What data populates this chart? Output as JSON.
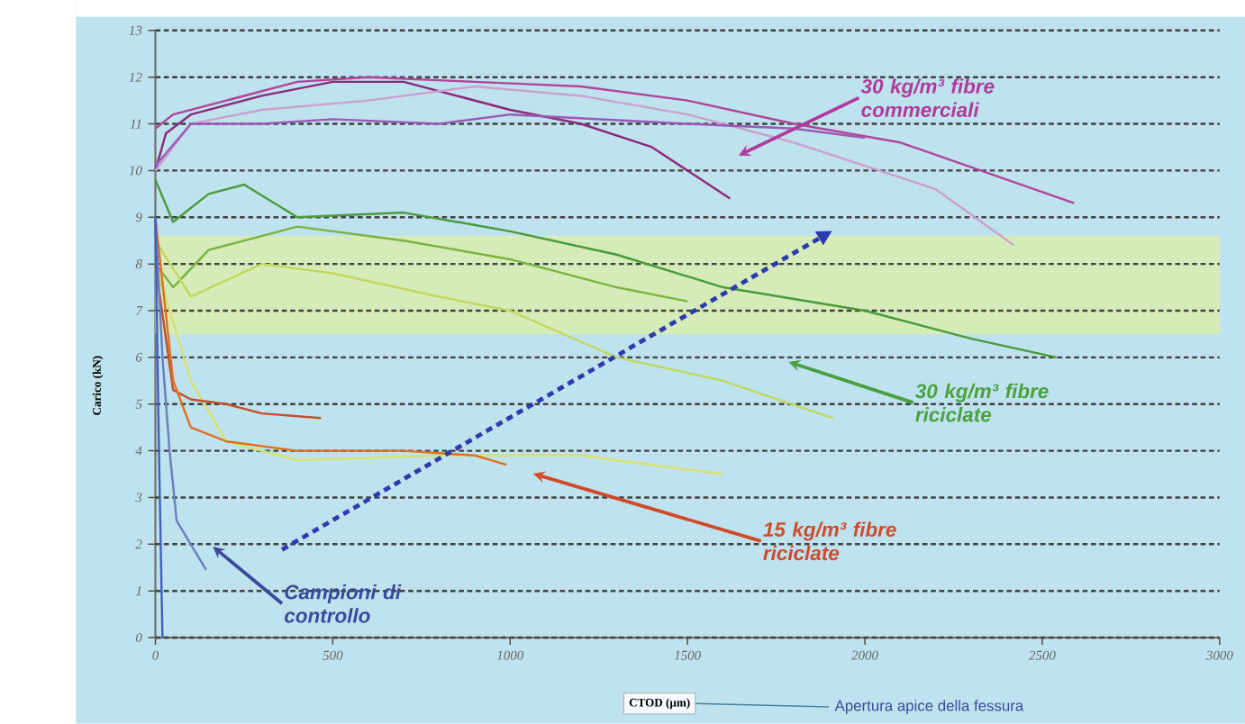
{
  "chart_data": {
    "type": "line",
    "ylabel": "Carico (kN)",
    "xlabel": "CTOD (µm)",
    "xlim": [
      0,
      3000
    ],
    "xticks": [
      0,
      500,
      1000,
      1500,
      2000,
      2500,
      3000
    ],
    "ylim": [
      0,
      13
    ],
    "yticks": [
      0,
      1,
      2,
      3,
      4,
      5,
      6,
      7,
      8,
      9,
      10,
      11,
      12,
      13
    ],
    "grid": "y",
    "line_style": "solid",
    "marker": "none",
    "bands": [
      {
        "axis": "y",
        "from": 6.5,
        "to": 8.6,
        "color": "#d6ecb8"
      }
    ],
    "series": [
      {
        "color": "#8b2a7a",
        "x": [
          0,
          30,
          100,
          300,
          500,
          700,
          1000,
          1200,
          1400,
          1620
        ],
        "values": [
          10,
          10.8,
          11.2,
          11.6,
          11.9,
          11.9,
          11.3,
          11.0,
          10.5,
          9.4
        ]
      },
      {
        "color": "#b0459a",
        "x": [
          0,
          50,
          200,
          400,
          600,
          900,
          1200,
          1500,
          1800,
          2100,
          2590
        ],
        "values": [
          10.9,
          11.2,
          11.5,
          11.9,
          12.0,
          11.9,
          11.8,
          11.5,
          11.0,
          10.6,
          9.3
        ]
      },
      {
        "color": "#c9a0d0",
        "x": [
          0,
          100,
          300,
          600,
          900,
          1200,
          1500,
          1800,
          2200,
          2420
        ],
        "values": [
          10,
          11.0,
          11.3,
          11.5,
          11.8,
          11.6,
          11.2,
          10.6,
          9.6,
          8.4
        ]
      },
      {
        "color": "#9b59b6",
        "x": [
          0,
          100,
          300,
          500,
          800,
          1000,
          1500,
          1800,
          2000
        ],
        "values": [
          10.1,
          11.0,
          11.0,
          11.1,
          11.0,
          11.2,
          11.0,
          10.9,
          10.7
        ]
      },
      {
        "color": "#4a9a3a",
        "x": [
          0,
          50,
          150,
          250,
          400,
          700,
          1000,
          1300,
          1600,
          2000,
          2300,
          2540
        ],
        "values": [
          9.8,
          8.9,
          9.5,
          9.7,
          9.0,
          9.1,
          8.7,
          8.2,
          7.5,
          7.0,
          6.4,
          6.0
        ]
      },
      {
        "color": "#7cb342",
        "x": [
          0,
          50,
          150,
          400,
          700,
          1000,
          1300,
          1500
        ],
        "values": [
          8,
          7.5,
          8.3,
          8.8,
          8.5,
          8.1,
          7.5,
          7.2
        ]
      },
      {
        "color": "#c0d860",
        "x": [
          0,
          100,
          300,
          500,
          800,
          1000,
          1300,
          1600,
          1910
        ],
        "values": [
          8.5,
          7.3,
          8.0,
          7.8,
          7.3,
          7.0,
          6.0,
          5.5,
          4.7
        ]
      },
      {
        "color": "#d8e070",
        "x": [
          0,
          100,
          200,
          400,
          800,
          1200,
          1600
        ],
        "values": [
          8,
          5.5,
          4.2,
          3.8,
          3.9,
          3.9,
          3.5
        ]
      },
      {
        "color": "#c0502a",
        "x": [
          0,
          50,
          100,
          200,
          300,
          467
        ],
        "values": [
          8,
          5.3,
          5.1,
          5.0,
          4.8,
          4.7
        ]
      },
      {
        "color": "#e07020",
        "x": [
          0,
          50,
          100,
          200,
          400,
          700,
          900,
          990
        ],
        "values": [
          9,
          5.5,
          4.5,
          4.2,
          4.0,
          4.0,
          3.9,
          3.7
        ]
      },
      {
        "color": "#6a7fc0",
        "x": [
          0,
          20,
          40,
          60,
          143
        ],
        "values": [
          9,
          6,
          4,
          2.5,
          1.45
        ]
      },
      {
        "color": "#4060c0",
        "x": [
          0,
          10,
          20
        ],
        "values": [
          9,
          4,
          0
        ]
      }
    ],
    "annotations": [
      "30 kg/m³ fibre commerciali",
      "30 kg/m³ fibre riciclate",
      "15 kg/m³ fibre riciclate",
      "Campioni di controllo",
      "Apertura apice della fessura"
    ]
  }
}
